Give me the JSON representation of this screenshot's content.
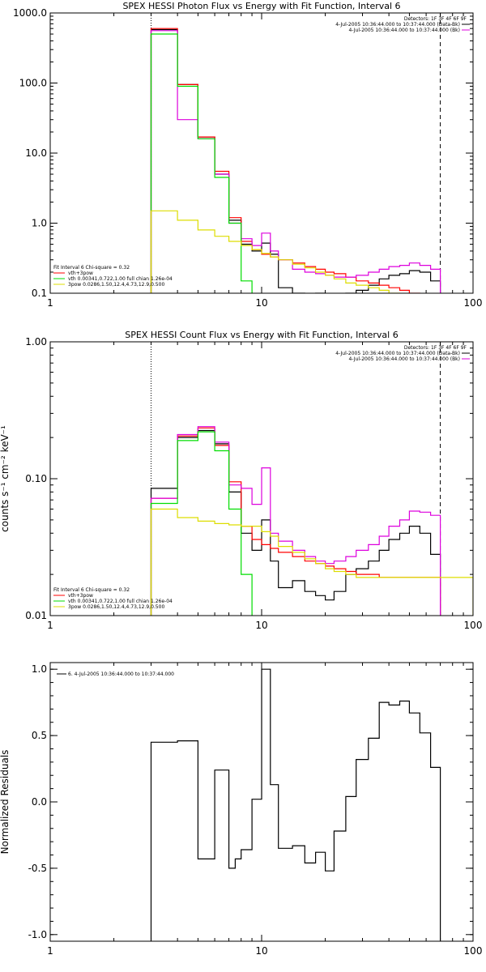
{
  "chart_data": [
    {
      "type": "line",
      "step": true,
      "title": "SPEX HESSI Photon Flux vs Energy with Fit Function, Interval 6",
      "xscale": "log",
      "yscale": "log",
      "xlim": [
        1,
        100
      ],
      "ylim": [
        0.1,
        1000
      ],
      "xticks": [
        {
          "v": 1,
          "label": "1"
        },
        {
          "v": 10,
          "label": "10"
        },
        {
          "v": 100,
          "label": "100"
        }
      ],
      "yticks": [
        {
          "v": 0.1,
          "label": "0.1"
        },
        {
          "v": 1,
          "label": "1.0"
        },
        {
          "v": 10,
          "label": "10.0"
        },
        {
          "v": 100,
          "label": "100.0"
        },
        {
          "v": 1000,
          "label": "1000.0"
        }
      ],
      "vlines": [
        {
          "x": 3,
          "style": "dotted"
        },
        {
          "x": 70,
          "style": "dashed"
        }
      ],
      "legend_top_right": [
        "Detectors: 1F 3F 4F 6F 9F",
        "4-Jul-2005 10:36:44.000 to 10:37:44.000 (Data-Bk)",
        "4-Jul-2005 10:36:44.000 to 10:37:44.000 (Bk)"
      ],
      "legend_bottom_left": {
        "header": "Fit Interval 6   Chi-square = 0.32",
        "entries": [
          {
            "label": "vth+3pow",
            "color": "#ff0000"
          },
          {
            "label": "vth 0.00341,0.722,1.00   full chian 1.26e-04",
            "color": "#00dd00"
          },
          {
            "label": "3pow 0.0286,1.50,12.4,4.73,12.9,0.500",
            "color": "#dddd00"
          }
        ]
      },
      "series": [
        {
          "color": "#000000",
          "edges": [
            3,
            4,
            5,
            6,
            7,
            8,
            9,
            10,
            11,
            12,
            14,
            16,
            18,
            20,
            22,
            25,
            28,
            32,
            36,
            40,
            45,
            50,
            56,
            63,
            70
          ],
          "values": [
            580,
            95,
            17,
            5,
            1.1,
            0.5,
            0.4,
            0.52,
            0.36,
            0.12,
            0.1,
            0.095,
            0.1,
            0.09,
            0.09,
            0.1,
            0.11,
            0.13,
            0.16,
            0.18,
            0.19,
            0.21,
            0.2,
            0.15
          ]
        },
        {
          "color": "#ff0000",
          "edges": [
            3,
            4,
            5,
            6,
            7,
            8,
            9,
            10,
            11,
            12,
            14,
            16,
            18,
            20,
            22,
            25,
            28,
            32,
            36,
            40,
            45,
            50,
            56,
            63,
            70
          ],
          "values": [
            600,
            95,
            17,
            5.5,
            1.2,
            0.55,
            0.42,
            0.36,
            0.33,
            0.3,
            0.27,
            0.24,
            0.22,
            0.2,
            0.19,
            0.17,
            0.15,
            0.14,
            0.13,
            0.12,
            0.11,
            0.1,
            0.095,
            0.09
          ]
        },
        {
          "color": "#dd00dd",
          "edges": [
            3,
            4,
            5,
            6,
            7,
            8,
            9,
            10,
            11,
            12,
            14,
            16,
            18,
            20,
            22,
            25,
            28,
            32,
            36,
            40,
            45,
            50,
            56,
            63,
            70
          ],
          "values": [
            560,
            30,
            16,
            5,
            1.0,
            0.6,
            0.48,
            0.72,
            0.4,
            0.3,
            0.22,
            0.2,
            0.19,
            0.18,
            0.17,
            0.17,
            0.18,
            0.2,
            0.22,
            0.24,
            0.25,
            0.27,
            0.25,
            0.22
          ]
        },
        {
          "color": "#00dd00",
          "edges": [
            3,
            4,
            5,
            6,
            7,
            8,
            9
          ],
          "values": [
            500,
            90,
            16,
            4.5,
            1.0,
            0.15
          ]
        },
        {
          "color": "#dddd00",
          "edges": [
            3,
            4,
            5,
            6,
            7,
            8,
            9,
            10,
            11,
            12,
            14,
            16,
            18,
            20,
            22,
            25,
            28,
            32,
            36,
            40,
            45,
            50,
            56,
            63,
            70
          ],
          "values": [
            1.5,
            1.1,
            0.8,
            0.65,
            0.55,
            0.48,
            0.42,
            0.37,
            0.33,
            0.3,
            0.26,
            0.23,
            0.2,
            0.18,
            0.16,
            0.14,
            0.13,
            0.12,
            0.11,
            0.1,
            0.095,
            0.09,
            0.085,
            0.08
          ]
        }
      ]
    },
    {
      "type": "line",
      "step": true,
      "title": "SPEX HESSI Count Flux vs Energy with Fit Function, Interval 6",
      "ylabel": "counts s⁻¹ cm⁻² keV⁻¹",
      "xscale": "log",
      "yscale": "log",
      "xlim": [
        1,
        100
      ],
      "ylim": [
        0.01,
        1
      ],
      "xticks": [
        {
          "v": 1,
          "label": "1"
        },
        {
          "v": 10,
          "label": "10"
        },
        {
          "v": 100,
          "label": "100"
        }
      ],
      "yticks": [
        {
          "v": 0.01,
          "label": "0.01"
        },
        {
          "v": 0.1,
          "label": "0.10"
        },
        {
          "v": 1,
          "label": "1.00"
        }
      ],
      "vlines": [
        {
          "x": 3,
          "style": "dotted"
        },
        {
          "x": 70,
          "style": "dashed"
        }
      ],
      "legend_top_right": [
        "Detectors: 1F 3F 4F 6F 9F",
        "4-Jul-2005 10:36:44.000 to 10:37:44.000 (Data-Bk)",
        "4-Jul-2005 10:36:44.000 to 10:37:44.000 (Bk)"
      ],
      "legend_bottom_left": {
        "header": "Fit Interval 6   Chi-square = 0.32",
        "entries": [
          {
            "label": "vth+3pow",
            "color": "#ff0000"
          },
          {
            "label": "vth 0.00341,0.722,1.00   full chian 1.26e-04",
            "color": "#00dd00"
          },
          {
            "label": "3pow 0.0286,1.50,12.4,4.73,12.9,0.500",
            "color": "#dddd00"
          }
        ]
      },
      "series": [
        {
          "color": "#000000",
          "edges": [
            3,
            4,
            5,
            6,
            7,
            8,
            9,
            10,
            11,
            12,
            14,
            16,
            18,
            20,
            22,
            25,
            28,
            32,
            36,
            40,
            45,
            50,
            56,
            63,
            70
          ],
          "values": [
            0.085,
            0.2,
            0.225,
            0.18,
            0.08,
            0.04,
            0.03,
            0.05,
            0.025,
            0.016,
            0.018,
            0.015,
            0.014,
            0.013,
            0.015,
            0.02,
            0.022,
            0.025,
            0.03,
            0.036,
            0.04,
            0.045,
            0.04,
            0.028
          ]
        },
        {
          "color": "#ff0000",
          "edges": [
            3,
            4,
            5,
            6,
            7,
            8,
            9,
            10,
            11,
            12,
            14,
            16,
            18,
            20,
            22,
            25,
            28,
            32,
            36,
            40,
            45,
            50,
            56,
            63,
            70
          ],
          "values": [
            0.072,
            0.205,
            0.235,
            0.175,
            0.095,
            0.045,
            0.036,
            0.033,
            0.031,
            0.029,
            0.027,
            0.025,
            0.024,
            0.023,
            0.022,
            0.021,
            0.02,
            0.02,
            0.019,
            0.019,
            0.019,
            0.019,
            0.019,
            0.019
          ]
        },
        {
          "color": "#dd00dd",
          "edges": [
            3,
            4,
            5,
            6,
            7,
            8,
            9,
            10,
            11,
            12,
            14,
            16,
            18,
            20,
            22,
            25,
            28,
            32,
            36,
            40,
            45,
            50,
            56,
            63,
            70
          ],
          "values": [
            0.072,
            0.21,
            0.24,
            0.185,
            0.09,
            0.085,
            0.065,
            0.12,
            0.04,
            0.035,
            0.03,
            0.027,
            0.025,
            0.024,
            0.025,
            0.027,
            0.03,
            0.033,
            0.038,
            0.045,
            0.05,
            0.058,
            0.057,
            0.054
          ]
        },
        {
          "color": "#00dd00",
          "edges": [
            3,
            4,
            5,
            6,
            7,
            8,
            9
          ],
          "values": [
            0.066,
            0.19,
            0.22,
            0.16,
            0.06,
            0.02
          ]
        },
        {
          "color": "#dddd00",
          "edges": [
            3,
            4,
            5,
            6,
            7,
            8,
            9,
            10,
            11,
            12,
            14,
            16,
            18,
            20,
            22,
            25,
            28,
            32,
            36,
            40,
            45,
            50,
            56,
            63,
            70,
            80,
            90,
            100
          ],
          "values": [
            0.06,
            0.052,
            0.049,
            0.047,
            0.046,
            0.045,
            0.045,
            0.041,
            0.038,
            0.032,
            0.029,
            0.026,
            0.024,
            0.022,
            0.021,
            0.02,
            0.019,
            0.019,
            0.019,
            0.019,
            0.019,
            0.019,
            0.019,
            0.019,
            0.019,
            0.019,
            0.019
          ]
        }
      ]
    },
    {
      "type": "line",
      "step": true,
      "title": "",
      "ylabel": "Normalized Residuals",
      "xscale": "log",
      "yscale": "linear",
      "xlim": [
        1,
        100
      ],
      "ylim": [
        -1.05,
        1.05
      ],
      "xticks": [
        {
          "v": 1,
          "label": "1"
        },
        {
          "v": 10,
          "label": "10"
        },
        {
          "v": 100,
          "label": "100"
        }
      ],
      "yticks": [
        {
          "v": -1.0,
          "label": "-1.0"
        },
        {
          "v": -0.5,
          "label": "-0.5"
        },
        {
          "v": 0.0,
          "label": "0.0"
        },
        {
          "v": 0.5,
          "label": "0.5"
        },
        {
          "v": 1.0,
          "label": "1.0"
        }
      ],
      "legend_top_left": "6.  4-Jul-2005 10:36:44.000 to 10:37:44.000",
      "series": [
        {
          "color": "#000000",
          "drop_to": -1.05,
          "edges": [
            3,
            4,
            5,
            6,
            7,
            7.5,
            8,
            9,
            10,
            11,
            12,
            14,
            16,
            18,
            20,
            22,
            25,
            28,
            32,
            36,
            40,
            45,
            50,
            56,
            63,
            70
          ],
          "values": [
            0.45,
            0.46,
            -0.43,
            0.24,
            -0.5,
            -0.43,
            -0.36,
            0.02,
            1.0,
            0.13,
            -0.35,
            -0.33,
            -0.46,
            -0.38,
            -0.52,
            -0.22,
            0.04,
            0.32,
            0.48,
            0.75,
            0.73,
            0.76,
            0.67,
            0.52,
            0.26
          ]
        }
      ]
    }
  ]
}
